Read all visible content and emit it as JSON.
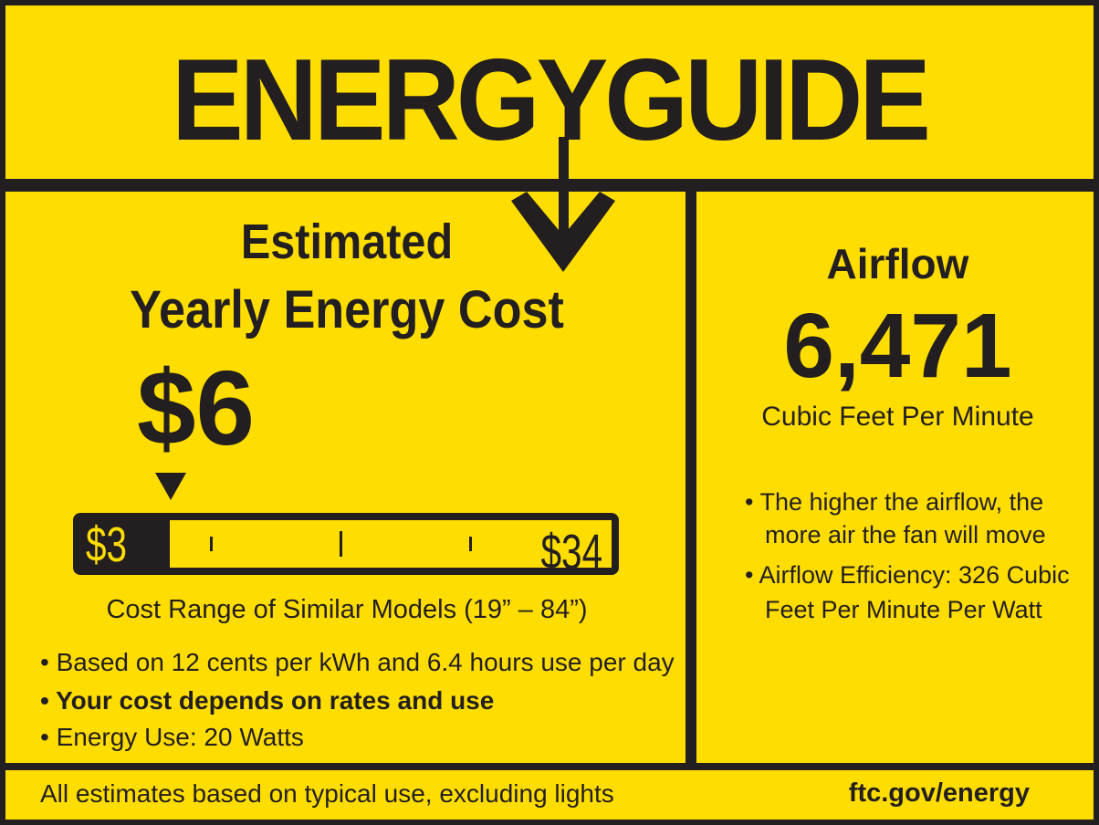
{
  "title": "ENERGYGUIDE",
  "cost": {
    "heading_line1": "Estimated",
    "heading_line2": "Yearly Energy Cost",
    "value": "$6",
    "range_low": "$3",
    "range_high": "$34",
    "range_caption": "Cost Range of Similar Models (19” – 84”)",
    "bullets": [
      "• Based on 12 cents per kWh and 6.4 hours use per day",
      "• Your cost depends on rates and use",
      "• Energy Use: 20 Watts"
    ]
  },
  "airflow": {
    "heading": "Airflow",
    "value": "6,471",
    "unit": "Cubic Feet Per Minute",
    "bullets": [
      "• The higher the airflow, the",
      "more air the fan will move",
      "• Airflow Efficiency: 326 Cubic",
      "Feet Per Minute Per Watt"
    ]
  },
  "footer": {
    "note": "All estimates based on typical use, excluding lights",
    "link": "ftc.gov/energy"
  },
  "colors": {
    "background": "#ffdd00",
    "ink": "#231f20"
  }
}
